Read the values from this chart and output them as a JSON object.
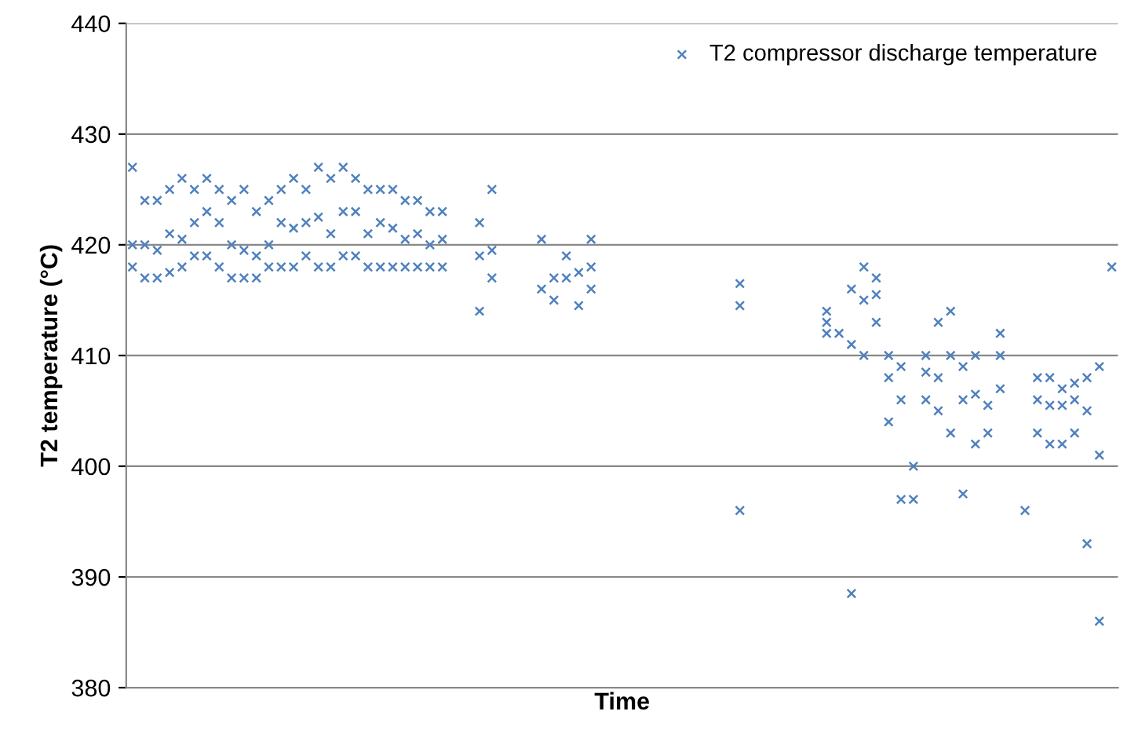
{
  "chart_data": {
    "type": "scatter",
    "xlabel": "Time",
    "ylabel": "T2 temperature (°C)",
    "categories": [
      null,
      null,
      null,
      null,
      null,
      null,
      null,
      null,
      null,
      null,
      null,
      null,
      null,
      null,
      null,
      null,
      null,
      null,
      null,
      null,
      null,
      null,
      null,
      null,
      null,
      null,
      null,
      null,
      null,
      null,
      null,
      null,
      null,
      null,
      null,
      null,
      null,
      null,
      null,
      null,
      null,
      null,
      null,
      null,
      null,
      null,
      null,
      null,
      null,
      null,
      null,
      null,
      null,
      null,
      null,
      null,
      null,
      null,
      null,
      null,
      null,
      null,
      null,
      null,
      null,
      null,
      null,
      null,
      null,
      null,
      null,
      null,
      null,
      null,
      null,
      null,
      null,
      null,
      null,
      null
    ],
    "series": [
      {
        "name": "T2 compressor discharge temperature",
        "color": "#4f81bd",
        "values": [
          420,
          420,
          419.5,
          421,
          420.5,
          422,
          423,
          422,
          420,
          419.5,
          419,
          420,
          422,
          421.5,
          422,
          422.5,
          421,
          423,
          423,
          421,
          422,
          421.5,
          420.5,
          421,
          420,
          420.5,
          null,
          null,
          419,
          419.5,
          null,
          null,
          null,
          null,
          417,
          417,
          417.5,
          418,
          null,
          null,
          null,
          null,
          null,
          null,
          null,
          null,
          null,
          null,
          null,
          414.5,
          null,
          null,
          null,
          null,
          null,
          null,
          413,
          412,
          411,
          415,
          415.5,
          408,
          406,
          400,
          408.5,
          408,
          410,
          406,
          406.5,
          405.5,
          410,
          null,
          null,
          406,
          405.5,
          405.5,
          406,
          405,
          401,
          418
        ]
      },
      {
        "color": "#4f81bd",
        "values": [
          427,
          424,
          424,
          425,
          426,
          425,
          426,
          425,
          424,
          425,
          423,
          424,
          425,
          426,
          425,
          427,
          426,
          427,
          426,
          425,
          425,
          425,
          424,
          424,
          423,
          423,
          null,
          null,
          422,
          425,
          null,
          null,
          null,
          420.5,
          null,
          419,
          null,
          420.5,
          null,
          null,
          null,
          null,
          null,
          null,
          null,
          null,
          null,
          null,
          null,
          416.5,
          null,
          null,
          null,
          null,
          null,
          null,
          414,
          null,
          416,
          418,
          417,
          410,
          409,
          null,
          410,
          413,
          414,
          409,
          410,
          null,
          412,
          null,
          null,
          408,
          408,
          407,
          407.5,
          408,
          409,
          null
        ]
      },
      {
        "color": "#4f81bd",
        "values": [
          418,
          417,
          417,
          417.5,
          418,
          419,
          419,
          418,
          417,
          417,
          417,
          418,
          418,
          418,
          419,
          418,
          418,
          419,
          419,
          418,
          418,
          418,
          418,
          418,
          418,
          418,
          null,
          null,
          414,
          417,
          null,
          null,
          null,
          416,
          415,
          null,
          414.5,
          416,
          null,
          null,
          null,
          null,
          null,
          null,
          null,
          null,
          null,
          null,
          null,
          396,
          null,
          null,
          null,
          null,
          null,
          null,
          412,
          null,
          388.5,
          410,
          413,
          404,
          397,
          397,
          406,
          405,
          403,
          397.5,
          402,
          403,
          407,
          null,
          396,
          403,
          402,
          402,
          403,
          393,
          386,
          null
        ]
      }
    ],
    "ylim": [
      380,
      440
    ],
    "yticks": [
      380,
      390,
      400,
      410,
      420,
      430,
      440
    ],
    "grid": "y",
    "legend": "top right",
    "marker": "cross",
    "tick_labels": "y"
  }
}
